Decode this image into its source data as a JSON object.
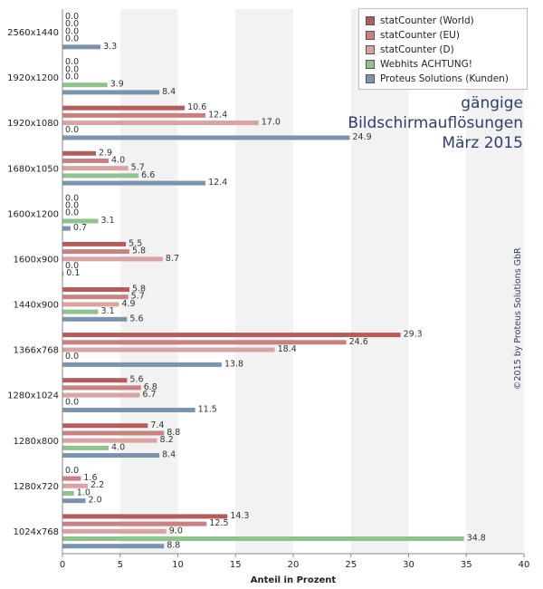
{
  "chart_data": {
    "type": "bar",
    "orientation": "horizontal",
    "title_lines": [
      "gängige",
      "Bildschirmauflösungen",
      "März 2015"
    ],
    "credit": "©2015 by Proteus Solutions GbR",
    "xlabel": "Anteil in Prozent",
    "xlim": [
      0,
      40
    ],
    "xticks": [
      0,
      5,
      10,
      15,
      20,
      25,
      30,
      35,
      40
    ],
    "legend_position": "top-right",
    "categories": [
      "2560x1440",
      "1920x1200",
      "1920x1080",
      "1680x1050",
      "1600x1200",
      "1600x900",
      "1440x900",
      "1366x768",
      "1280x1024",
      "1280x800",
      "1280x720",
      "1024x768"
    ],
    "series": [
      {
        "name": "statCounter (World)",
        "color": "#b65b5b",
        "values": [
          0.0,
          0.0,
          10.6,
          2.9,
          0.0,
          5.5,
          5.8,
          29.3,
          5.6,
          7.4,
          0.0,
          14.3
        ]
      },
      {
        "name": "statCounter (EU)",
        "color": "#c98080",
        "values": [
          0.0,
          0.0,
          12.4,
          4.0,
          0.0,
          5.8,
          5.7,
          24.6,
          6.8,
          8.8,
          1.6,
          12.5
        ]
      },
      {
        "name": "statCounter (D)",
        "color": "#d9a3a3",
        "values": [
          0.0,
          0.0,
          17.0,
          5.7,
          0.0,
          8.7,
          4.9,
          18.4,
          6.7,
          8.2,
          2.2,
          9.0
        ]
      },
      {
        "name": "Webhits ACHTUNG!",
        "color": "#8fc28c",
        "values": [
          0.0,
          3.9,
          0.0,
          6.6,
          3.1,
          0.0,
          3.1,
          0.0,
          0.0,
          4.0,
          1.0,
          34.8
        ]
      },
      {
        "name": "Proteus Solutions (Kunden)",
        "color": "#7b93ad",
        "values": [
          3.3,
          8.4,
          24.9,
          12.4,
          0.7,
          0.1,
          5.6,
          13.8,
          11.5,
          8.4,
          2.0,
          8.8
        ]
      }
    ]
  }
}
